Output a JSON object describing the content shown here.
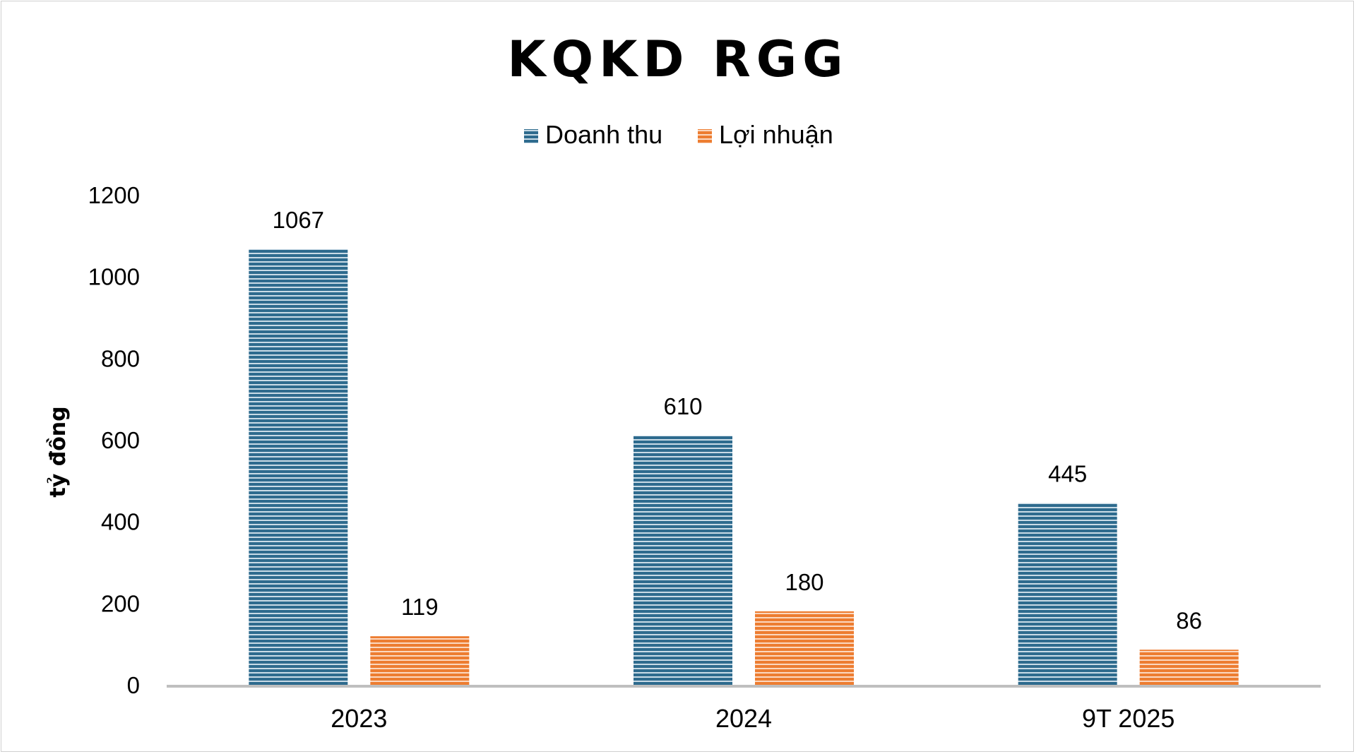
{
  "chart_data": {
    "type": "bar",
    "title": "KQKD RGG",
    "ylabel": "tỷ đồng",
    "xlabel": "",
    "categories": [
      "2023",
      "2024",
      "9T 2025"
    ],
    "series": [
      {
        "name": "Doanh thu",
        "values": [
          1067,
          610,
          445
        ],
        "color": "#2e6b8e",
        "stripe_color": "#c9dbe6"
      },
      {
        "name": "Lợi nhuận",
        "values": [
          119,
          180,
          86
        ],
        "color": "#ed7d31",
        "stripe_color": "#fbd8c0"
      }
    ],
    "ylim": [
      0,
      1200
    ],
    "yticks": [
      "0",
      "200",
      "400",
      "600",
      "800",
      "1000",
      "1200"
    ],
    "grid": false,
    "legend_position": "top-center",
    "data_labels": true,
    "bar_fill": "horizontal-stripes"
  }
}
